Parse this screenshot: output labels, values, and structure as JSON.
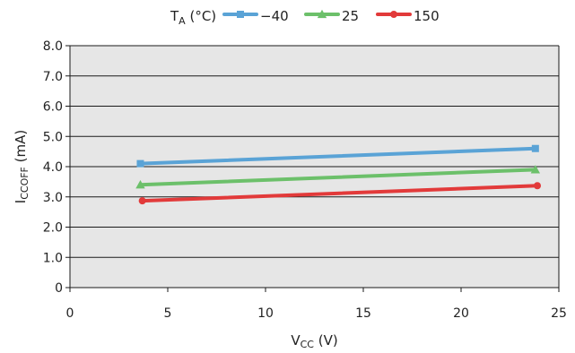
{
  "chart_data": {
    "type": "line",
    "title": "",
    "xlabel": "V",
    "xlabel_sub": "CC",
    "xlabel_unit": " (V)",
    "ylabel": "I",
    "ylabel_sub": "CCOFF",
    "ylabel_unit": " (mA)",
    "legend_title": "T",
    "legend_title_sub": "A",
    "legend_title_unit": " (°C)",
    "legend_position": "top",
    "xlim": [
      0,
      25
    ],
    "ylim": [
      0,
      8
    ],
    "xticks": [
      "0",
      "5",
      "10",
      "15",
      "20",
      "25"
    ],
    "yticks": [
      "0",
      "1.0",
      "2.0",
      "3.0",
      "4.0",
      "5.0",
      "6.0",
      "7.0",
      "8.0"
    ],
    "grid": true,
    "plot_background": "#e6e6e6",
    "series": [
      {
        "name": "−40",
        "marker": "square",
        "color": "#5aa3d6",
        "points": [
          [
            3.6,
            4.1
          ],
          [
            23.8,
            4.6
          ]
        ]
      },
      {
        "name": "25",
        "marker": "triangle",
        "color": "#6cc06a",
        "points": [
          [
            3.6,
            3.4
          ],
          [
            23.8,
            3.9
          ]
        ]
      },
      {
        "name": "150",
        "marker": "circle",
        "color": "#e23a3a",
        "points": [
          [
            3.7,
            2.87
          ],
          [
            23.9,
            3.37
          ]
        ]
      }
    ]
  }
}
